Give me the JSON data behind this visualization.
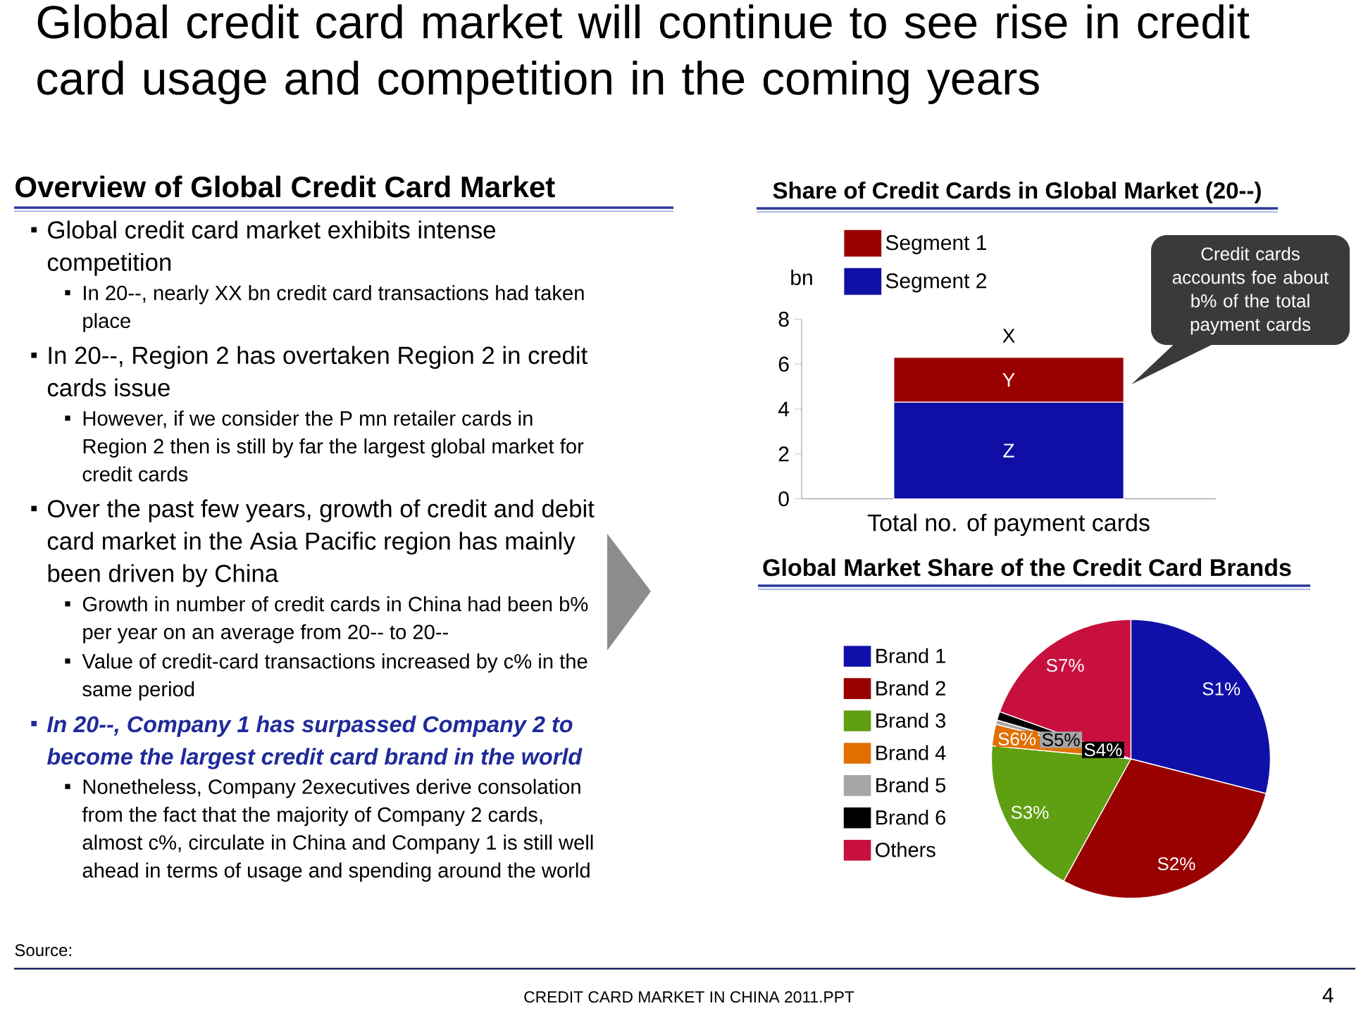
{
  "chart_data": [
    {
      "type": "other",
      "title": "Global credit card market will continue to see rise in credit card usage and competition in the coming years",
      "subtitle": "Overview of Global Credit Card Market",
      "annotations": [
        "Global credit card market exhibits intense competition",
        "In 20--, nearly XX bn credit card transactions had taken place",
        "In 20--, Region 2 has overtaken Region 2 in credit cards issue",
        "However, if we consider the P mn retailer cards in Region 2 then is still by far the largest global market for credit cards",
        "Over the past few years, growth of credit and debit card market in the Asia Pacific region has mainly been driven by China",
        "Growth in number of credit cards in China had been b% per year on an average from 20-- to 20--",
        "Value of credit-card transactions increased by c% in the same period",
        "In 20--, Company 1 has surpassed Company 2 to become the largest credit card brand in the world",
        "Nonetheless, Company 2executives derive consolation from the fact that the majority of Company 2 cards, almost c%, circulate in China and Company 1 is still well ahead in terms of usage and spending around the world",
        "Source:",
        "CREDIT  CARD MARKET IN CHINA 2011.PPT",
        "4"
      ]
    },
    {
      "type": "bar",
      "title": "Share of Credit Cards in Global Market (20--)",
      "ylabel": "bn",
      "categories": [
        "Total no. of payment cards"
      ],
      "stacked": true,
      "series": [
        {
          "name": "Segment 2",
          "color": "#0f0fa6",
          "values": [
            4.3
          ],
          "value_labels": [
            "Z"
          ]
        },
        {
          "name": "Segment 1",
          "color": "#9b0000",
          "values": [
            2.0
          ],
          "value_labels": [
            "Y"
          ]
        }
      ],
      "totals": [
        "X"
      ],
      "ylim": [
        0,
        8
      ],
      "yticks": [
        0,
        2,
        4,
        6,
        8
      ],
      "legend": "top",
      "annotations": [
        "Credit cards accounts foe about b% of the total payment cards"
      ]
    },
    {
      "type": "pie",
      "title": "Global Market Share of the Credit Card Brands",
      "categories": [
        "Brand 1",
        "Brand 2",
        "Brand 3",
        "Brand 4",
        "Brand 5",
        "Brand 6",
        "Others"
      ],
      "values": [
        29,
        29,
        18.5,
        2.5,
        0.5,
        1,
        19.5
      ],
      "colors": [
        "#1010a8",
        "#990000",
        "#5f9f12",
        "#e07000",
        "#a6a6a6",
        "#000000",
        "#c8103f"
      ],
      "value_labels": [
        "S1%",
        "S2%",
        "S3%",
        "S6%",
        "S5%",
        "S4%",
        "S7%"
      ],
      "legend": "left"
    }
  ]
}
